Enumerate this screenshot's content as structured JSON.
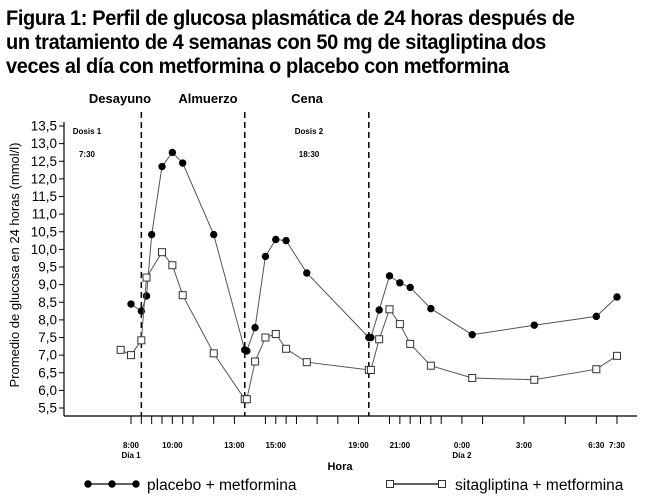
{
  "figure": {
    "title_lines": [
      "Figura 1: Perfil de glucosa plasmática de 24 horas después de",
      "un tratamiento de 4 semanas con 50 mg de sitagliptina dos",
      "veces al día con metformina o placebo con metformina"
    ]
  },
  "chart_data": {
    "type": "line",
    "title": "Figura 1: Perfil de glucosa plasmática de 24 horas después de un tratamiento de 4 semanas con 50 mg de sitagliptina dos veces al día con metformina o placebo con metformina",
    "xlabel": "Hora",
    "ylabel": "Promedio de glucosa en 24 horas (mmol/l)",
    "xlim": [
      7.5,
      32.2
    ],
    "ylim": [
      5.5,
      13.5
    ],
    "y_ticks": [
      "5,5",
      "6,0",
      "6,5",
      "7,0",
      "7,5",
      "8,0",
      "8,5",
      "9,0",
      "9,5",
      "10,0",
      "10,5",
      "11,0",
      "11,5",
      "12,0",
      "12,5",
      "13,0",
      "13,5"
    ],
    "x_ticks": [
      {
        "x": 8.0,
        "label": "8:00"
      },
      {
        "x": 10.0,
        "label": "10:00"
      },
      {
        "x": 13.0,
        "label": "13:00"
      },
      {
        "x": 15.0,
        "label": "15:00"
      },
      {
        "x": 19.0,
        "label": "19:00"
      },
      {
        "x": 21.0,
        "label": "21:00"
      },
      {
        "x": 24.0,
        "label": "0:00"
      },
      {
        "x": 27.0,
        "label": "3:00"
      },
      {
        "x": 30.5,
        "label": "6:30"
      },
      {
        "x": 31.5,
        "label": "7:30"
      }
    ],
    "day_labels": [
      {
        "x": 8.0,
        "label": "Día 1"
      },
      {
        "x": 24.0,
        "label": "Día 2"
      }
    ],
    "minor_ticks": [
      8.0,
      8.5,
      9.0,
      9.5,
      10.0,
      10.5,
      11.0,
      12.0,
      13.0,
      14.5,
      15.0,
      15.5,
      16.0,
      17.0,
      18.0,
      19.0,
      20.5,
      21.0,
      21.5,
      22.0,
      22.5,
      23.0,
      24.0,
      25.0,
      27.0,
      29.0,
      30.5,
      31.5
    ],
    "meal_lines": [
      {
        "x": 8.5,
        "label": "Desayuno"
      },
      {
        "x": 13.5,
        "label": "Almuerzo"
      },
      {
        "x": 19.5,
        "label": "Cena"
      }
    ],
    "dose_annotations": [
      {
        "x": 7.6,
        "label": "Dosis 1",
        "time": "7:30"
      },
      {
        "x": 16.6,
        "label": "Dosis 2",
        "time": "18:30"
      }
    ],
    "series": [
      {
        "name": "placebo + metformina",
        "marker": "filled-circle",
        "segments": [
          [
            [
              8.0,
              8.45
            ],
            [
              8.5,
              8.25
            ],
            [
              8.75,
              8.68
            ],
            [
              9.0,
              10.42
            ],
            [
              9.5,
              12.35
            ],
            [
              10.0,
              12.75
            ],
            [
              10.5,
              12.45
            ],
            [
              12.0,
              10.42
            ],
            [
              13.5,
              7.15
            ]
          ],
          [
            [
              13.6,
              7.12
            ],
            [
              14.0,
              7.78
            ],
            [
              14.5,
              9.8
            ],
            [
              15.0,
              10.28
            ],
            [
              15.5,
              10.25
            ],
            [
              16.5,
              9.33
            ],
            [
              19.5,
              7.5
            ]
          ],
          [
            [
              19.6,
              7.5
            ],
            [
              20.0,
              8.28
            ],
            [
              20.5,
              9.25
            ],
            [
              21.0,
              9.05
            ],
            [
              21.5,
              8.92
            ],
            [
              22.5,
              8.32
            ],
            [
              24.5,
              7.58
            ],
            [
              27.5,
              7.85
            ],
            [
              30.5,
              8.1
            ],
            [
              31.5,
              8.65
            ]
          ]
        ]
      },
      {
        "name": "sitagliptina + metformina",
        "marker": "open-square",
        "segments": [
          [
            [
              7.5,
              7.15
            ],
            [
              8.0,
              7.0
            ],
            [
              8.5,
              7.42
            ],
            [
              8.75,
              9.2
            ],
            [
              9.5,
              9.92
            ],
            [
              10.0,
              9.55
            ],
            [
              10.5,
              8.7
            ],
            [
              12.0,
              7.05
            ],
            [
              13.5,
              5.75
            ]
          ],
          [
            [
              13.6,
              5.75
            ],
            [
              14.0,
              6.82
            ],
            [
              14.5,
              7.5
            ],
            [
              15.0,
              7.6
            ],
            [
              15.5,
              7.18
            ],
            [
              16.5,
              6.8
            ],
            [
              19.5,
              6.58
            ]
          ],
          [
            [
              19.6,
              6.58
            ],
            [
              20.0,
              7.45
            ],
            [
              20.5,
              8.3
            ],
            [
              21.0,
              7.88
            ],
            [
              21.5,
              7.32
            ],
            [
              22.5,
              6.7
            ],
            [
              24.5,
              6.35
            ],
            [
              27.5,
              6.3
            ],
            [
              30.5,
              6.6
            ],
            [
              31.5,
              6.98
            ]
          ]
        ]
      }
    ],
    "legend": {
      "placement": "bottom"
    }
  }
}
